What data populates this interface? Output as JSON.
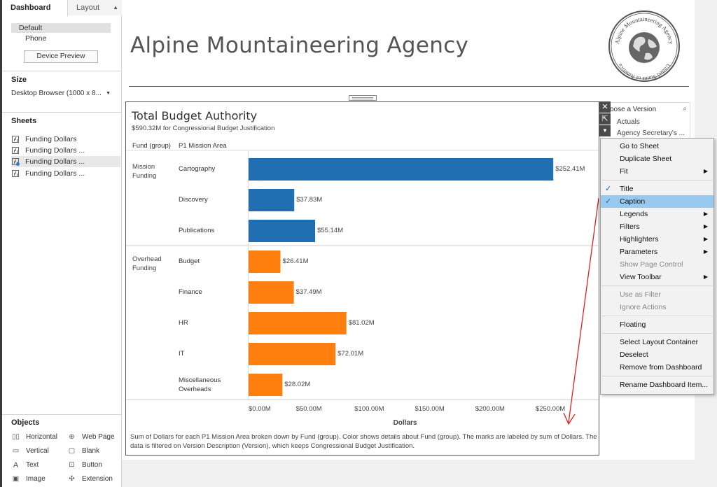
{
  "left_pane": {
    "tabs": {
      "dashboard": "Dashboard",
      "layout": "Layout"
    },
    "devices": {
      "default": "Default",
      "phone": "Phone"
    },
    "device_preview_label": "Device Preview",
    "size": {
      "title": "Size",
      "value": "Desktop Browser (1000 x 8..."
    },
    "sheets": {
      "title": "Sheets",
      "items": [
        "Funding Dollars",
        "Funding Dollars ...",
        "Funding Dollars ...",
        "Funding Dollars ..."
      ]
    },
    "objects": {
      "title": "Objects",
      "items": {
        "horizontal": "Horizontal",
        "web_page": "Web Page",
        "vertical": "Vertical",
        "blank": "Blank",
        "text": "Text",
        "button": "Button",
        "image": "Image",
        "extension": "Extension"
      }
    }
  },
  "dashboard": {
    "title": "Alpine Mountaineering Agency",
    "logo": {
      "name": "Alpine Mountaineering Agency",
      "country": "United States of America"
    },
    "version_filter": {
      "title": "oose a Version",
      "options": [
        "Actuals",
        "Agency Secretary's ..."
      ]
    }
  },
  "chart_data": {
    "type": "bar",
    "orientation": "horizontal",
    "title": "Total Budget Authority",
    "subtitle": "$590.32M for Congressional Budget Justification",
    "column_headers": {
      "group": "Fund (group)",
      "category": "P1 Mission Area"
    },
    "groups": [
      {
        "name": "Mission Funding",
        "color": "#1f6fb2",
        "categories": [
          "Cartography",
          "Discovery",
          "Publications"
        ],
        "values": [
          252.41,
          37.83,
          55.14
        ],
        "labels": [
          "$252.41M",
          "$37.83M",
          "$55.14M"
        ]
      },
      {
        "name": "Overhead Funding",
        "color": "#ff7f0e",
        "categories": [
          "Budget",
          "Finance",
          "HR",
          "IT",
          "Miscellaneous Overheads"
        ],
        "values": [
          26.41,
          37.49,
          81.02,
          72.01,
          28.02
        ],
        "labels": [
          "$26.41M",
          "$37.49M",
          "$81.02M",
          "$72.01M",
          "$28.02M"
        ]
      }
    ],
    "xlabel": "Dollars",
    "xlim": [
      0,
      290
    ],
    "xticks": [
      0,
      50,
      100,
      150,
      200,
      250
    ],
    "xtick_labels": [
      "$0.00M",
      "$50.00M",
      "$100.00M",
      "$150.00M",
      "$200.00M",
      "$250.00M"
    ],
    "caption": "Sum of Dollars for each P1 Mission Area broken down by Fund (group).  Color shows details about Fund (group).  The marks are labeled by sum of Dollars. The data is filtered on Version Description (Version), which keeps Congressional Budget Justification."
  },
  "context_menu": {
    "items": [
      {
        "label": "Go to Sheet"
      },
      {
        "label": "Duplicate Sheet"
      },
      {
        "label": "Fit",
        "submenu": true
      },
      {
        "separator": true
      },
      {
        "label": "Title",
        "checked": true
      },
      {
        "label": "Caption",
        "checked": true,
        "highlighted": true
      },
      {
        "label": "Legends",
        "submenu": true
      },
      {
        "label": "Filters",
        "submenu": true
      },
      {
        "label": "Highlighters",
        "submenu": true
      },
      {
        "label": "Parameters",
        "submenu": true
      },
      {
        "label": "Show Page Control",
        "disabled": true
      },
      {
        "label": "View Toolbar",
        "submenu": true
      },
      {
        "separator": true
      },
      {
        "label": "Use as Filter",
        "disabled": true
      },
      {
        "label": "Ignore Actions",
        "disabled": true
      },
      {
        "separator": true
      },
      {
        "label": "Floating"
      },
      {
        "separator": true
      },
      {
        "label": "Select Layout Container"
      },
      {
        "label": "Deselect"
      },
      {
        "label": "Remove from Dashboard"
      },
      {
        "separator": true
      },
      {
        "label": "Rename Dashboard Item..."
      }
    ]
  },
  "colors": {
    "mission": "#1f6fb2",
    "overhead": "#ff7f0e",
    "annotation": "#e02020",
    "menu_highlight": "#99c9ef"
  }
}
